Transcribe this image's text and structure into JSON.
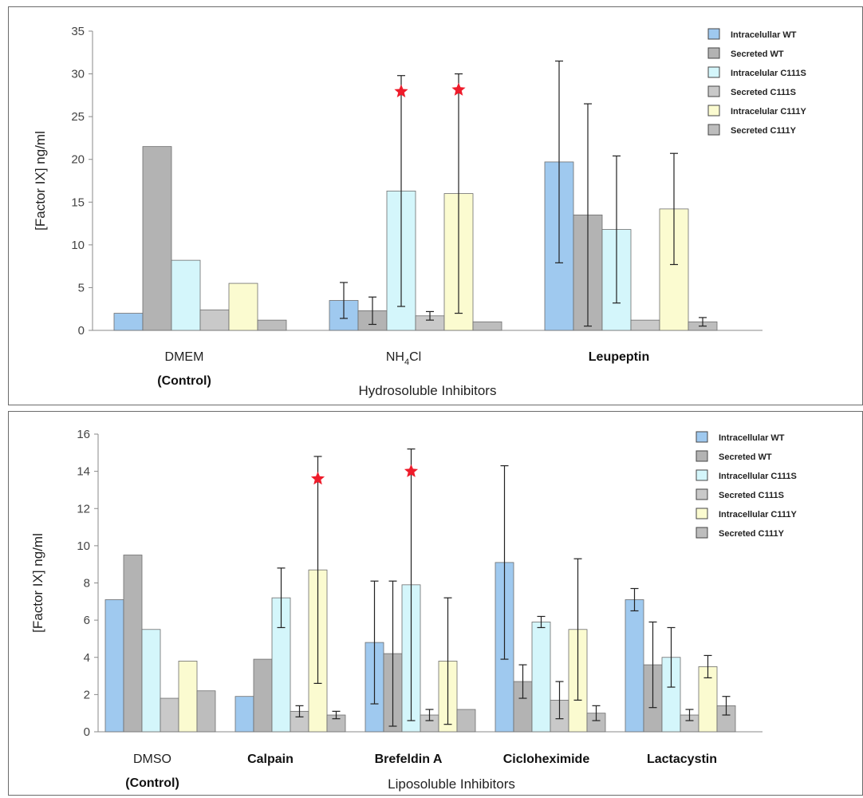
{
  "colors": {
    "intracellular_wt": "#9fc9ef",
    "secreted_wt": "#b3b3b3",
    "intracellular_c111s": "#d4f6fb",
    "secreted_c111s": "#c9c9c9",
    "intracellular_c111y": "#fbfbd0",
    "secreted_c111y": "#bdbdbd",
    "star": "#ee1c2b"
  },
  "chart_data": [
    {
      "type": "bar",
      "ylabel": "[Factor IX]  ng/ml",
      "xlabel": "Hydrosoluble Inhibitors",
      "ylim": [
        0,
        35
      ],
      "yticks": [
        0,
        5,
        10,
        15,
        20,
        25,
        30,
        35
      ],
      "categories": [
        "DMEM",
        "NH4Cl",
        "Leupeptin"
      ],
      "category_sublabels": [
        "(Control)",
        "",
        ""
      ],
      "legend": "top-right",
      "grid": false,
      "series": [
        {
          "name": "Intracelullar WT",
          "values": [
            2,
            3.5,
            19.7
          ],
          "error": [
            null,
            2.1,
            11.8
          ]
        },
        {
          "name": "Secreted WT",
          "values": [
            21.5,
            2.3,
            13.5
          ],
          "error": [
            null,
            1.6,
            13
          ]
        },
        {
          "name": "Intracelular C111S",
          "values": [
            8.2,
            16.3,
            11.8
          ],
          "error": [
            null,
            13.5,
            8.6
          ]
        },
        {
          "name": "Secreted C111S",
          "values": [
            2.4,
            1.7,
            1.2
          ],
          "error": [
            null,
            0.5,
            null
          ]
        },
        {
          "name": "Intracelular C111Y",
          "values": [
            5.5,
            16,
            14.2
          ],
          "error": [
            null,
            14,
            6.5
          ]
        },
        {
          "name": "Secreted C111Y",
          "values": [
            1.2,
            1,
            1
          ],
          "error": [
            null,
            null,
            0.5
          ]
        }
      ],
      "significance_stars": [
        {
          "category": "NH4Cl",
          "series": 2
        },
        {
          "category": "NH4Cl",
          "series": 4
        }
      ]
    },
    {
      "type": "bar",
      "ylabel": "[Factor IX] ng/ml",
      "xlabel": "Liposoluble Inhibitors",
      "ylim": [
        0,
        16
      ],
      "yticks": [
        0,
        2,
        4,
        6,
        8,
        10,
        12,
        14,
        16
      ],
      "categories": [
        "DMSO",
        "Calpain",
        "Brefeldin A",
        "Cicloheximide",
        "Lactacystin"
      ],
      "category_sublabels": [
        "(Control)",
        "",
        "",
        "",
        ""
      ],
      "legend": "top-right",
      "grid": false,
      "series": [
        {
          "name": "Intracellular WT",
          "values": [
            7.1,
            1.9,
            4.8,
            9.1,
            7.1
          ],
          "error": [
            null,
            null,
            3.3,
            5.2,
            0.6
          ]
        },
        {
          "name": "Secreted WT",
          "values": [
            9.5,
            3.9,
            4.2,
            2.7,
            3.6
          ],
          "error": [
            null,
            null,
            3.9,
            0.9,
            2.3
          ]
        },
        {
          "name": "Intracellular C111S",
          "values": [
            5.5,
            7.2,
            7.9,
            5.9,
            4
          ],
          "error": [
            null,
            1.6,
            7.3,
            0.3,
            1.6
          ]
        },
        {
          "name": "Secreted C111S",
          "values": [
            1.8,
            1.1,
            0.9,
            1.7,
            0.9
          ],
          "error": [
            null,
            0.3,
            0.3,
            1,
            0.3
          ]
        },
        {
          "name": "Intracellular C111Y",
          "values": [
            3.8,
            8.7,
            3.8,
            5.5,
            3.5
          ],
          "error": [
            null,
            6.1,
            3.4,
            3.8,
            0.6
          ]
        },
        {
          "name": "Secreted C111Y",
          "values": [
            2.2,
            0.9,
            1.2,
            1,
            1.4
          ],
          "error": [
            null,
            0.2,
            null,
            0.4,
            0.5
          ]
        }
      ],
      "significance_stars": [
        {
          "category": "Calpain",
          "series": 4
        },
        {
          "category": "Brefeldin A",
          "series": 2
        }
      ]
    }
  ]
}
